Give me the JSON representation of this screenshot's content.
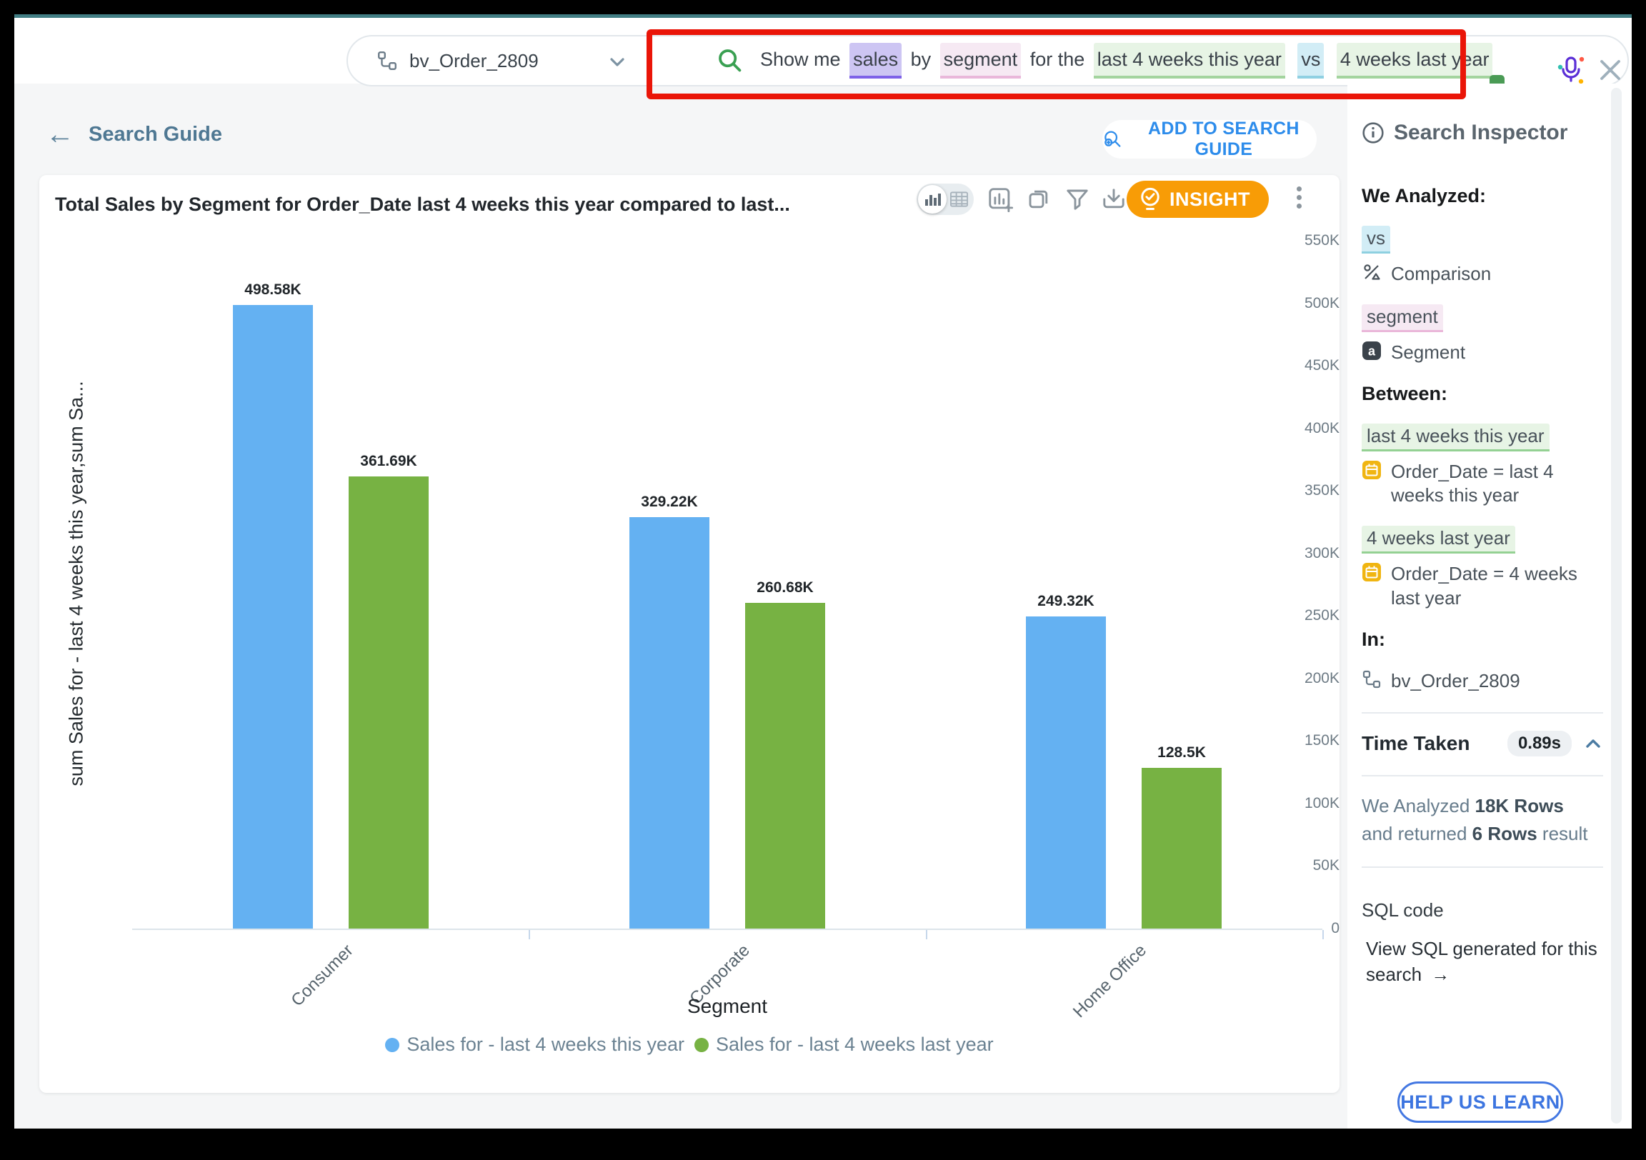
{
  "topbar": {
    "datasource_label": "bv_Order_2809",
    "search_tokens": [
      {
        "text": "Show me ",
        "type": "plain"
      },
      {
        "text": "sales",
        "type": "measure"
      },
      {
        "text": " by ",
        "type": "plain"
      },
      {
        "text": "segment",
        "type": "attribute"
      },
      {
        "text": " for the ",
        "type": "plain"
      },
      {
        "text": "last 4 weeks this year",
        "type": "time"
      },
      {
        "text": " ",
        "type": "plain"
      },
      {
        "text": "vs",
        "type": "comparison"
      },
      {
        "text": " ",
        "type": "plain"
      },
      {
        "text": "4 weeks last year",
        "type": "time"
      }
    ]
  },
  "nav": {
    "back_label": "Search Guide",
    "add_button_label": "ADD TO SEARCH GUIDE"
  },
  "chart_card": {
    "insight_label": "INSIGHT"
  },
  "chart_data": {
    "type": "bar",
    "title": "Total Sales by Segment for Order_Date last 4 weeks this year compared to last...",
    "categories": [
      "Consumer",
      "Corporate",
      "Home Office"
    ],
    "series": [
      {
        "name": "Sales for - last 4 weeks this year",
        "color": "#64b1f2",
        "values": [
          498580,
          329220,
          249320
        ],
        "labels": [
          "498.58K",
          "329.22K",
          "249.32K"
        ]
      },
      {
        "name": "Sales for - last 4 weeks last year",
        "color": "#77b243",
        "values": [
          361690,
          260680,
          128500
        ],
        "labels": [
          "361.69K",
          "260.68K",
          "128.5K"
        ]
      }
    ],
    "xlabel": "Segment",
    "ylabel": "sum Sales for - last 4 weeks this year,sum Sa...",
    "ylim": [
      0,
      550000
    ],
    "ytick_step": 50000,
    "yticks": [
      "0",
      "50K",
      "100K",
      "150K",
      "200K",
      "250K",
      "300K",
      "350K",
      "400K",
      "450K",
      "500K",
      "550K"
    ],
    "grid": false,
    "legend_position": "bottom"
  },
  "inspector": {
    "title": "Search Inspector",
    "we_analyzed_label": "We Analyzed:",
    "analyzed": [
      {
        "token": "vs",
        "desc": "Comparison"
      },
      {
        "token": "segment",
        "desc": "Segment"
      }
    ],
    "between_label": "Between:",
    "between": [
      {
        "token": "last 4 weeks this year",
        "desc": "Order_Date = last 4 weeks this year"
      },
      {
        "token": "4 weeks last year",
        "desc": "Order_Date = 4 weeks last year"
      }
    ],
    "in_label": "In:",
    "in_value": "bv_Order_2809",
    "time_taken_label": "Time Taken",
    "time_taken_value": "0.89s",
    "summary": {
      "line1_prefix": "We Analyzed ",
      "line1_bold": "18K Rows",
      "line2_prefix": "and returned ",
      "line2_bold": "6 Rows",
      "line2_suffix": " result"
    },
    "sql_label": "SQL code",
    "sql_link_text": "View SQL generated for this search",
    "help_button_label": "HELP US LEARN"
  },
  "icons": {
    "back_arrow": "←",
    "arrow_right": "→"
  }
}
